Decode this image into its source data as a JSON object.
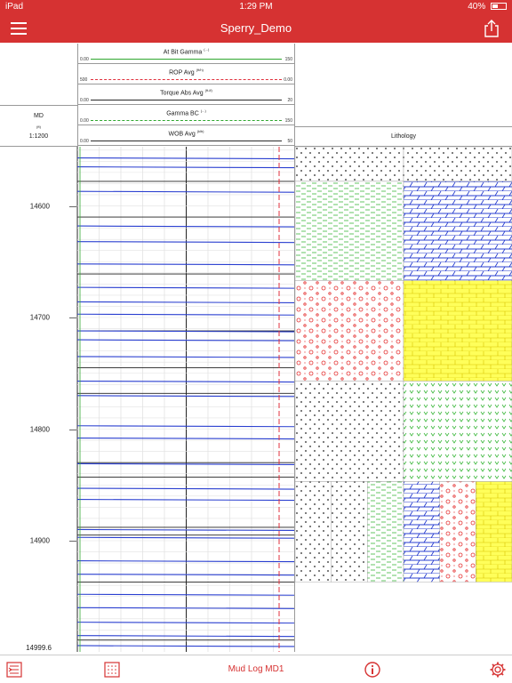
{
  "status_bar": {
    "device": "iPad",
    "time": "1:29 PM",
    "battery": "40%"
  },
  "nav": {
    "title": "Sperry_Demo",
    "menu_icon": "hamburger-menu-icon",
    "share_icon": "share-icon"
  },
  "curves": [
    {
      "name": "At Bit Gamma",
      "unit": "(...)",
      "min": "0.00",
      "max": "150",
      "color": "#2fa82f",
      "style": "solid"
    },
    {
      "name": "ROP Avg",
      "unit": "(ft/h)",
      "min": "500",
      "max": "0.00",
      "color": "#e0303c",
      "style": "longdash"
    },
    {
      "name": "Torque Abs Avg",
      "unit": "(ft-lf)",
      "min": "0.00",
      "max": "20",
      "color": "#2a2a2a",
      "style": "solid"
    },
    {
      "name": "Gamma BC",
      "unit": "(...)",
      "min": "0.00",
      "max": "150",
      "color": "#2fa82f",
      "style": "dash"
    },
    {
      "name": "WOB Avg",
      "unit": "(klb)",
      "min": "0.00",
      "max": "50",
      "color": "#2a2a2a",
      "style": "solid"
    }
  ],
  "depth_header": {
    "label": "MD",
    "unit": "(ft)",
    "scale": "1:1200"
  },
  "lithology_header": "Lithology",
  "depth": {
    "top": 14547,
    "bottom": 14999.6,
    "labels": [
      "14600",
      "14700",
      "14800",
      "14900"
    ],
    "label_values": [
      14600,
      14700,
      14800,
      14900
    ],
    "bottom_label": "14999.6"
  },
  "blue_lines_md": [
    14557,
    14565,
    14587,
    14618,
    14632,
    14652,
    14673,
    14686,
    14697,
    14712,
    14720,
    14735,
    14757,
    14770,
    14797,
    14808,
    14831,
    14853,
    14863,
    14890,
    14897,
    14918,
    14930,
    14948,
    14960,
    14973,
    14985,
    14994
  ],
  "black_lines_md": [
    14578,
    14610,
    14661,
    14712,
    14745,
    14768,
    14830,
    14843,
    14888,
    14895,
    14937,
    14989
  ],
  "lithology": [
    {
      "from": 14547,
      "to": 14578,
      "left": "dots",
      "right": "dots"
    },
    {
      "from": 14578,
      "to": 14667,
      "left": "green-dash",
      "right": "blue-brick"
    },
    {
      "from": 14667,
      "to": 14757,
      "left": "red-circles",
      "right": "yellow-brick"
    },
    {
      "from": 14757,
      "to": 14847,
      "left": "dots",
      "right": "green-v"
    },
    {
      "from": 14847,
      "to": 14937,
      "split": [
        "dots",
        "dots",
        "green-dash",
        "blue-brick",
        "red-circles",
        "yellow-brick"
      ]
    }
  ],
  "toolbar": {
    "title": "Mud Log MD1",
    "left_icon": "track-select-icon",
    "pattern_icon": "lithology-pattern-icon",
    "info_icon": "info-icon",
    "settings_icon": "gear-icon"
  }
}
